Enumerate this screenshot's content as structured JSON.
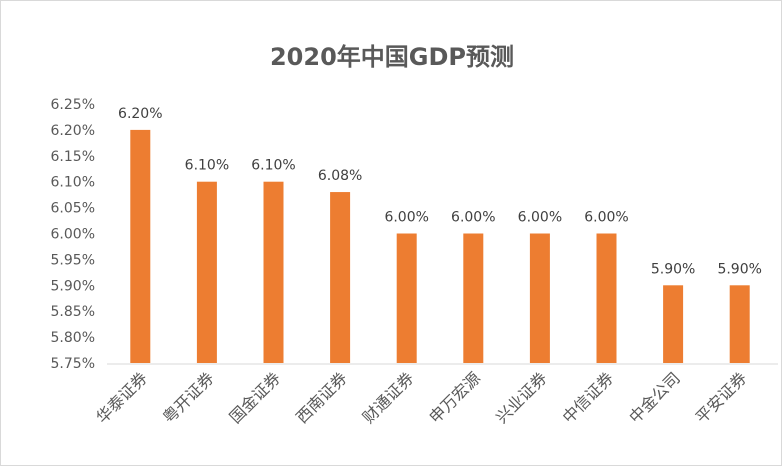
{
  "chart_data": {
    "type": "bar",
    "title": "2020年中国GDP预测",
    "categories": [
      "华泰证券",
      "粤开证券",
      "国金证券",
      "西南证券",
      "财通证券",
      "申万宏源",
      "兴业证券",
      "中信证券",
      "中金公司",
      "平安证券"
    ],
    "values": [
      6.2,
      6.1,
      6.1,
      6.08,
      6.0,
      6.0,
      6.0,
      6.0,
      5.9,
      5.9
    ],
    "data_labels": [
      "6.20%",
      "6.10%",
      "6.10%",
      "6.08%",
      "6.00%",
      "6.00%",
      "6.00%",
      "6.00%",
      "5.90%",
      "5.90%"
    ],
    "yticks": [
      "5.75%",
      "5.80%",
      "5.85%",
      "5.90%",
      "5.95%",
      "6.00%",
      "6.05%",
      "6.10%",
      "6.15%",
      "6.20%",
      "6.25%"
    ],
    "ylim": [
      5.75,
      6.25
    ],
    "xlabel": "",
    "ylabel": "",
    "grid": false,
    "bar_color": "#ed7d31"
  }
}
